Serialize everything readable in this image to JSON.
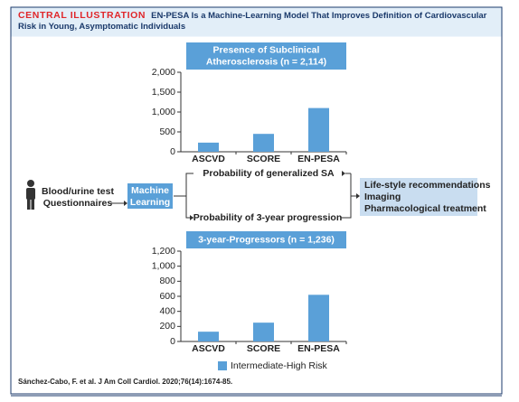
{
  "header": {
    "label": "CENTRAL ILLUSTRATION",
    "title": "EN-PESA Is a Machine-Learning Model That Improves Definition of Cardiovascular Risk in Young, Asymptomatic Individuals"
  },
  "diagram": {
    "inputs": [
      "Blood/urine test",
      "Questionnaires"
    ],
    "model": [
      "Machine",
      "Learning"
    ],
    "outputs": [
      "Probability of generalized SA",
      "Probability of 3-year progression"
    ],
    "recommendations": [
      "Life-style recommendations",
      "Imaging",
      "Pharmacological treatment"
    ]
  },
  "chart_data": [
    {
      "type": "bar",
      "title": [
        "Presence of Subclinical",
        "Atherosclerosis (n = 2,114)"
      ],
      "categories": [
        "ASCVD",
        "SCORE",
        "EN-PESA"
      ],
      "values": [
        230,
        450,
        1100
      ],
      "color": "#5aa0d8",
      "ylim": [
        0,
        2000
      ],
      "yticks": [
        0,
        500,
        {
          "value": 1000,
          "label": "1,000"
        },
        {
          "value": 1500,
          "label": "1,500"
        },
        {
          "value": 2000,
          "label": "2,000"
        }
      ]
    },
    {
      "type": "bar",
      "title": [
        "3-year-Progressors (n = 1,236)"
      ],
      "categories": [
        "ASCVD",
        "SCORE",
        "EN-PESA"
      ],
      "series": [
        {
          "name": "Intermediate-High Risk",
          "color": "#5aa0d8",
          "values": [
            130,
            250,
            620
          ]
        }
      ],
      "ylim": [
        0,
        1200
      ],
      "yticks": [
        0,
        200,
        400,
        600,
        800,
        {
          "value": 1000,
          "label": "1,000"
        },
        {
          "value": 1200,
          "label": "1,200"
        }
      ]
    }
  ],
  "citation": "Sánchez-Cabo, F. et al. J Am Coll Cardiol. 2020;76(14):1674-85."
}
